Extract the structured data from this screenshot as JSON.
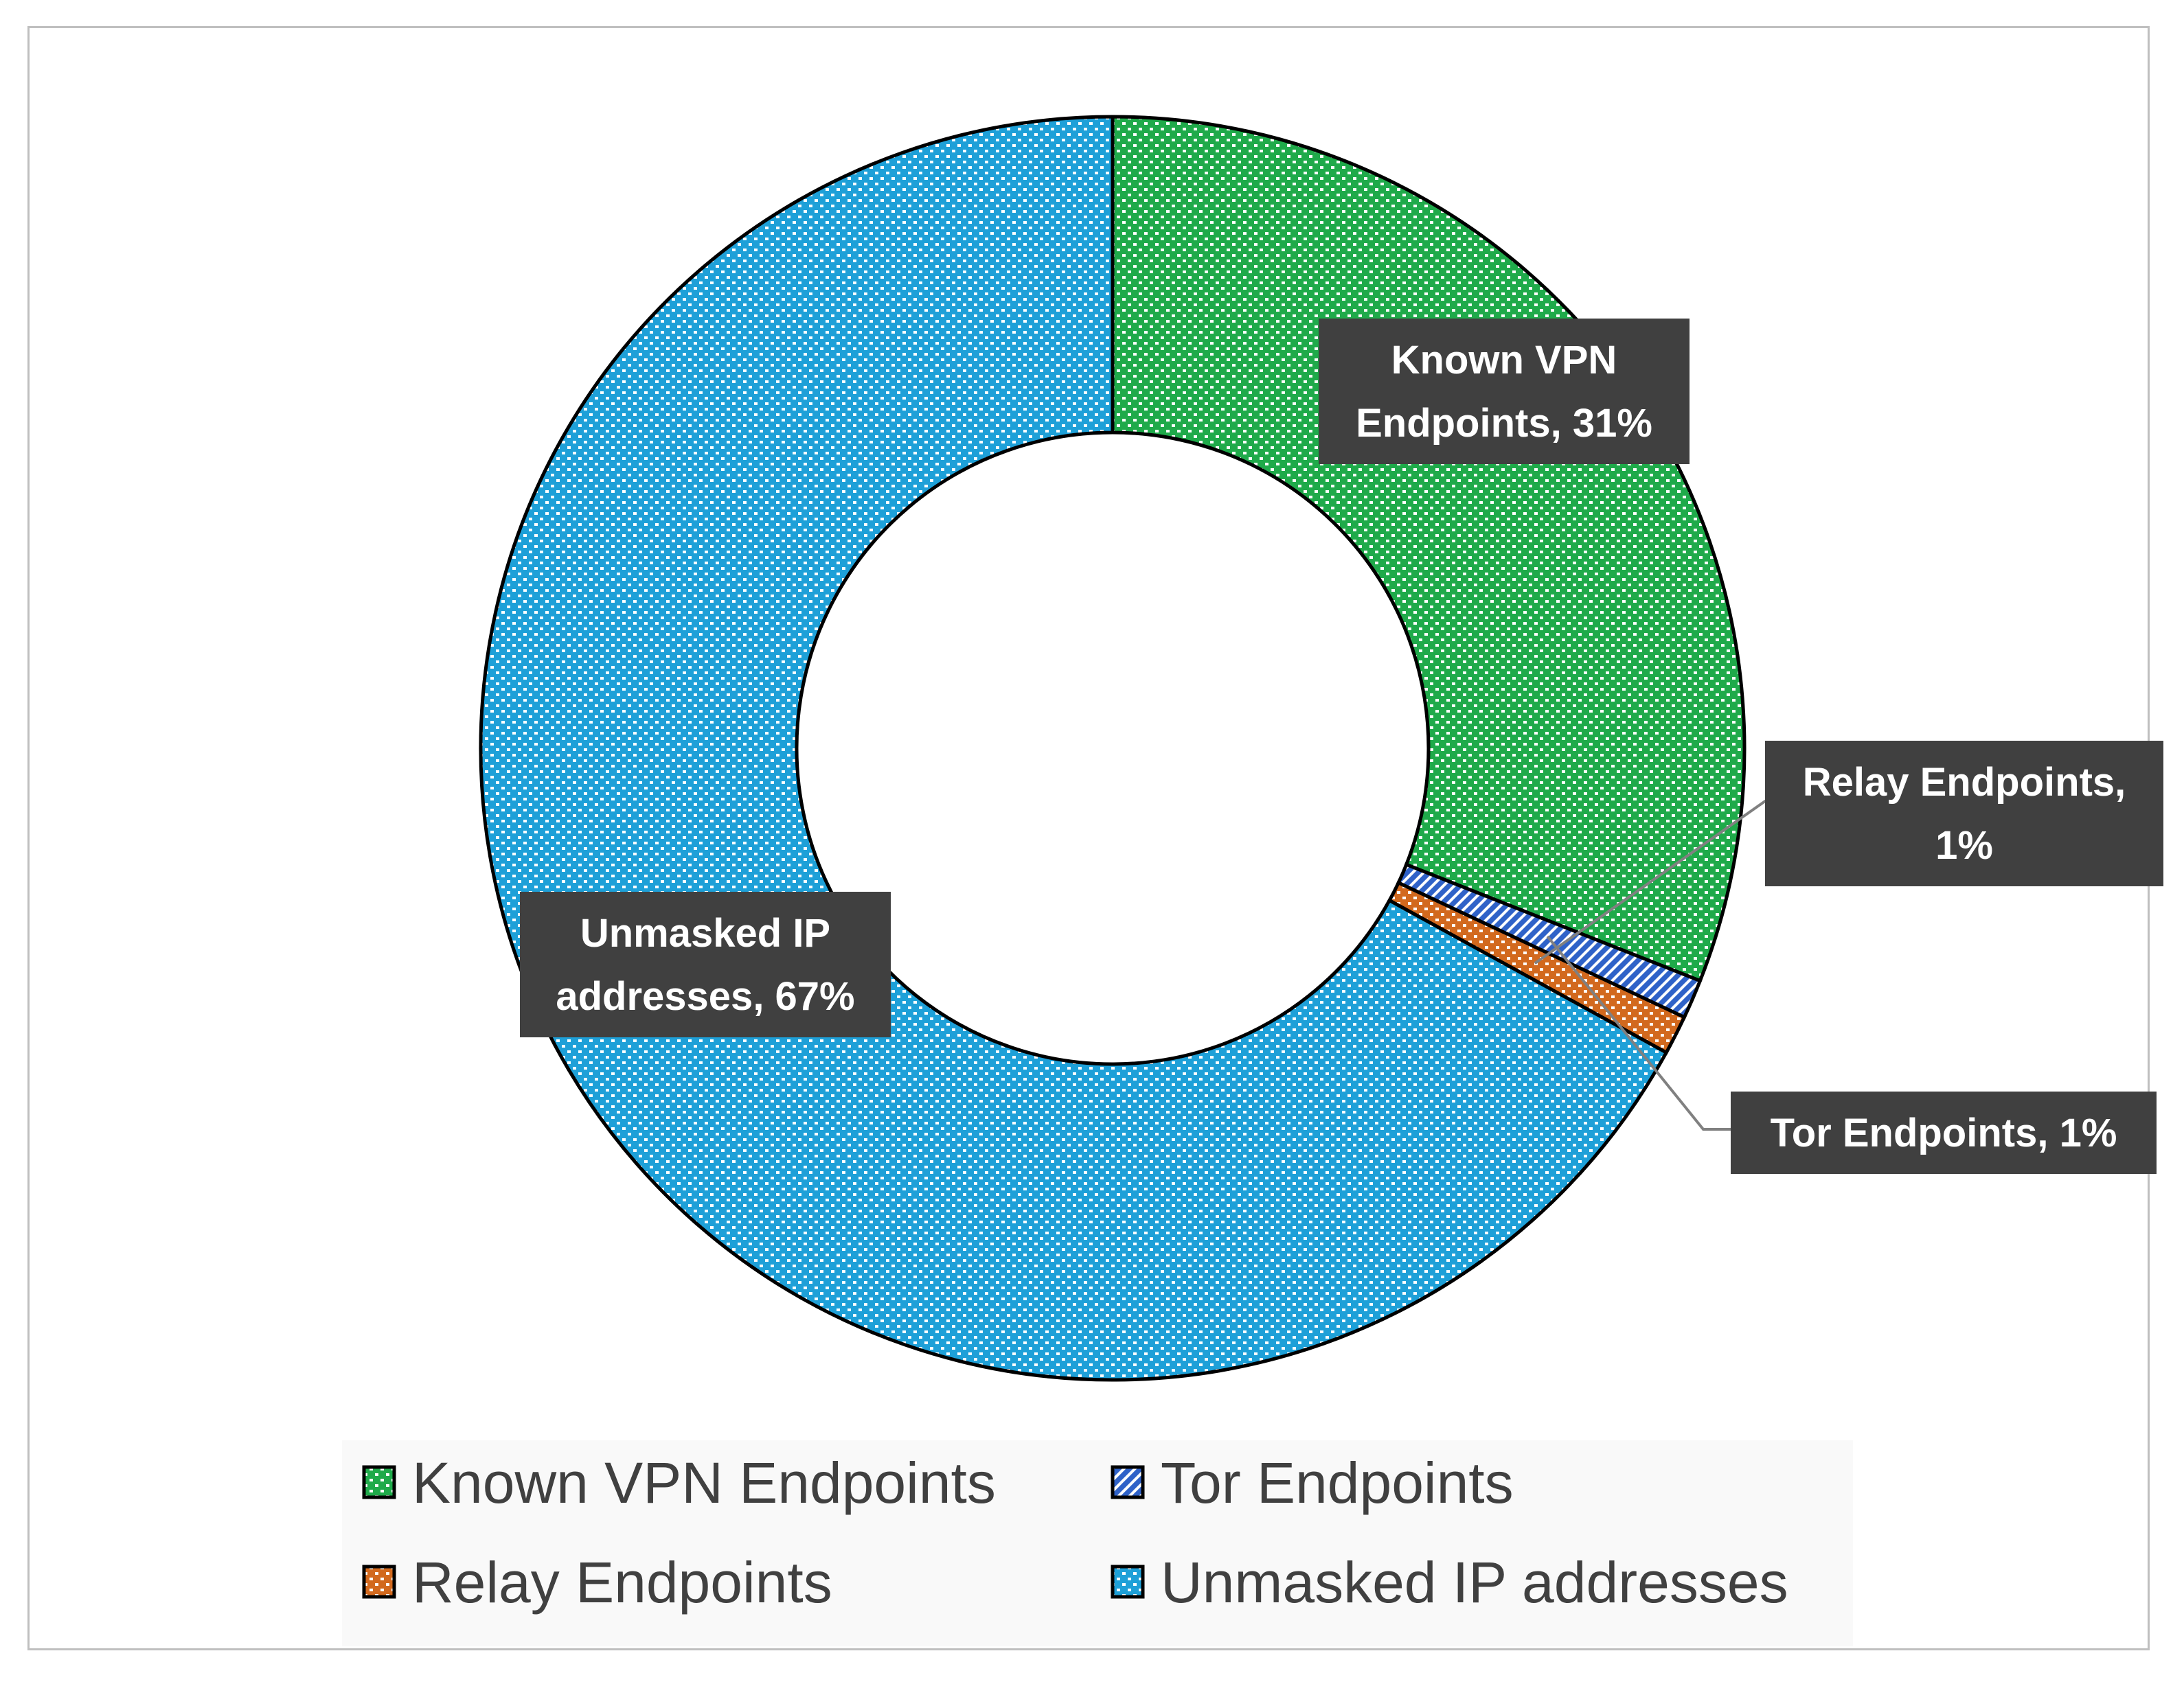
{
  "chart_data": {
    "type": "doughnut",
    "title": "",
    "series": [
      {
        "name": "Known VPN Endpoints",
        "value": 31,
        "label": [
          "Known VPN",
          "Endpoints, 31%"
        ],
        "color": "#1faa4a"
      },
      {
        "name": "Tor Endpoints",
        "value": 1,
        "label": [
          "Tor Endpoints, 1%"
        ],
        "color": "#2f62c8"
      },
      {
        "name": "Relay Endpoints",
        "value": 1,
        "label": [
          "Relay Endpoints,",
          "1%"
        ],
        "color": "#d2691e"
      },
      {
        "name": "Unmasked IP addresses",
        "value": 67,
        "label": [
          "Unmasked IP",
          "addresses, 67%"
        ],
        "color": "#1ea0d8"
      }
    ],
    "legend": {
      "position": "bottom",
      "items": [
        "Known VPN Endpoints",
        "Tor Endpoints",
        "Relay Endpoints",
        "Unmasked IP addresses"
      ]
    },
    "label_style": {
      "background": "#404040",
      "text_color": "#ffffff"
    }
  }
}
